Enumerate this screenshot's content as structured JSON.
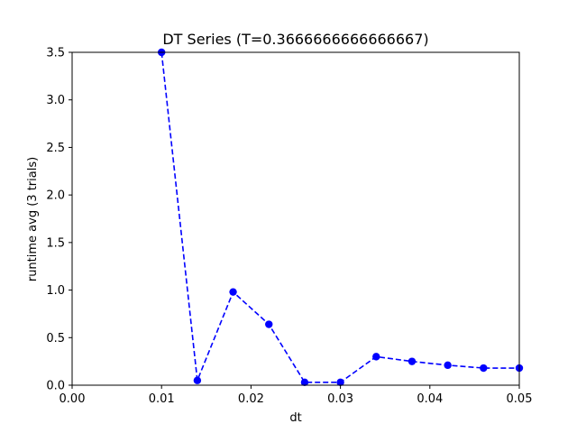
{
  "chart_data": {
    "type": "line",
    "title": "DT Series (T=0.3666666666666667)",
    "xlabel": "dt",
    "ylabel": "runtime avg (3 trials)",
    "xlim": [
      0.0,
      0.05
    ],
    "ylim": [
      0.0,
      3.5
    ],
    "xticks": [
      "0.00",
      "0.01",
      "0.02",
      "0.03",
      "0.04",
      "0.05"
    ],
    "yticks": [
      "0.0",
      "0.5",
      "1.0",
      "1.5",
      "2.0",
      "2.5",
      "3.0",
      "3.5"
    ],
    "grid": false,
    "series": [
      {
        "color": "#0000ff",
        "linestyle": "dashed",
        "marker": "circle",
        "x": [
          0.01,
          0.014,
          0.018,
          0.022,
          0.026,
          0.03,
          0.034,
          0.038,
          0.042,
          0.046,
          0.05
        ],
        "y": [
          3.5,
          0.05,
          0.98,
          0.64,
          0.03,
          0.03,
          0.3,
          0.25,
          0.21,
          0.18,
          0.18
        ]
      }
    ]
  }
}
